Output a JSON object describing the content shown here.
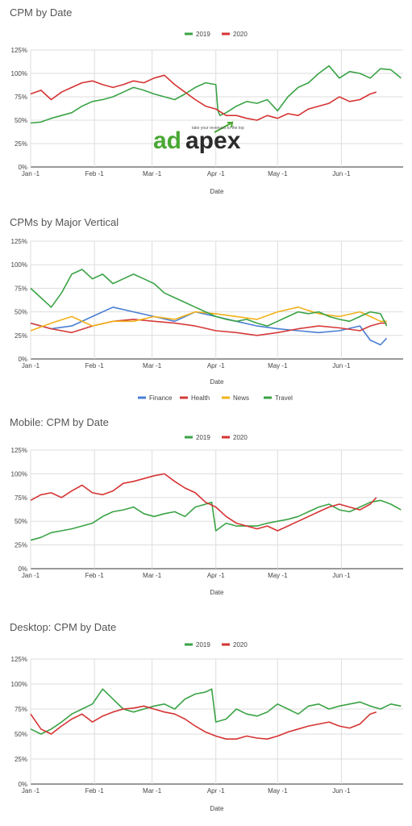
{
  "chart_data": [
    {
      "type": "line",
      "title": "CPM by Date",
      "xlabel": "Date",
      "ylabel": "",
      "x_ticks": [
        "Jan -1",
        "Feb -1",
        "Mar -1",
        "Apr -1",
        "May -1",
        "Jun -1"
      ],
      "y_ticks": [
        "0%",
        "25%",
        "50%",
        "75%",
        "100%",
        "125%"
      ],
      "ylim": [
        0,
        125
      ],
      "x_unit": "day of year (Jan 1 = 0)",
      "legend": "top",
      "grid": true,
      "series": [
        {
          "name": "2019",
          "color": "#3aa345",
          "x": [
            0,
            5,
            10,
            15,
            20,
            25,
            30,
            35,
            40,
            45,
            50,
            55,
            60,
            65,
            70,
            75,
            80,
            85,
            90,
            91,
            92,
            95,
            100,
            105,
            110,
            115,
            120,
            125,
            130,
            135,
            140,
            145,
            150,
            155,
            160,
            165,
            170,
            175,
            180
          ],
          "values": [
            47,
            48,
            52,
            55,
            58,
            65,
            70,
            72,
            75,
            80,
            85,
            82,
            78,
            75,
            72,
            78,
            85,
            90,
            88,
            60,
            55,
            58,
            65,
            70,
            68,
            72,
            60,
            75,
            85,
            90,
            100,
            108,
            95,
            102,
            100,
            95,
            105,
            104,
            95
          ]
        },
        {
          "name": "2020",
          "color": "#d63333",
          "x": [
            0,
            5,
            10,
            15,
            20,
            25,
            30,
            35,
            40,
            45,
            50,
            55,
            60,
            65,
            70,
            75,
            80,
            85,
            90,
            95,
            100,
            105,
            110,
            115,
            120,
            125,
            130,
            135,
            140,
            145,
            150,
            155,
            160,
            165,
            168
          ],
          "values": [
            78,
            82,
            72,
            80,
            85,
            90,
            92,
            88,
            85,
            88,
            92,
            90,
            95,
            98,
            88,
            80,
            72,
            65,
            62,
            55,
            55,
            52,
            50,
            55,
            52,
            57,
            55,
            62,
            65,
            68,
            75,
            70,
            72,
            78,
            80
          ]
        }
      ]
    },
    {
      "type": "line",
      "title": "CPMs by Major Vertical",
      "xlabel": "Date",
      "ylabel": "",
      "x_ticks": [
        "Jan -1",
        "Feb -1",
        "Mar -1",
        "Apr -1",
        "May -1",
        "Jun -1"
      ],
      "y_ticks": [
        "0%",
        "25%",
        "50%",
        "75%",
        "100%",
        "125%"
      ],
      "ylim": [
        0,
        125
      ],
      "x_unit": "day of year (Jan 1 = 0)",
      "legend": "bottom",
      "grid": true,
      "series": [
        {
          "name": "Finance",
          "color": "#4a7fd4",
          "x": [
            0,
            10,
            20,
            30,
            40,
            50,
            60,
            70,
            80,
            90,
            100,
            110,
            120,
            130,
            140,
            150,
            160,
            165,
            170,
            173
          ],
          "values": [
            38,
            32,
            35,
            45,
            55,
            50,
            45,
            40,
            50,
            45,
            40,
            35,
            32,
            30,
            28,
            30,
            35,
            20,
            15,
            22
          ]
        },
        {
          "name": "Health",
          "color": "#d63b3b",
          "x": [
            0,
            10,
            20,
            30,
            40,
            50,
            60,
            70,
            80,
            90,
            100,
            110,
            120,
            130,
            140,
            150,
            160,
            165,
            170,
            173
          ],
          "values": [
            38,
            32,
            28,
            35,
            40,
            42,
            40,
            38,
            35,
            30,
            28,
            25,
            28,
            32,
            35,
            33,
            30,
            35,
            38,
            38
          ]
        },
        {
          "name": "News",
          "color": "#f2b11a",
          "x": [
            0,
            10,
            20,
            30,
            40,
            50,
            60,
            70,
            80,
            90,
            100,
            110,
            120,
            130,
            140,
            150,
            160,
            165,
            170,
            173
          ],
          "values": [
            30,
            38,
            45,
            35,
            40,
            40,
            45,
            42,
            50,
            48,
            45,
            42,
            50,
            55,
            48,
            45,
            50,
            45,
            40,
            40
          ]
        },
        {
          "name": "Travel",
          "color": "#3aa345",
          "x": [
            0,
            5,
            10,
            15,
            20,
            25,
            30,
            35,
            40,
            45,
            50,
            55,
            60,
            65,
            70,
            75,
            80,
            85,
            90,
            95,
            100,
            105,
            110,
            115,
            120,
            125,
            130,
            135,
            140,
            145,
            150,
            155,
            160,
            165,
            170,
            173
          ],
          "values": [
            75,
            65,
            55,
            70,
            90,
            95,
            85,
            90,
            80,
            85,
            90,
            85,
            80,
            70,
            65,
            60,
            55,
            50,
            45,
            42,
            40,
            42,
            38,
            35,
            40,
            45,
            50,
            48,
            50,
            45,
            42,
            40,
            45,
            50,
            48,
            35
          ]
        }
      ]
    },
    {
      "type": "line",
      "title": "Mobile: CPM by Date",
      "xlabel": "Date",
      "ylabel": "",
      "x_ticks": [
        "Jan -1",
        "Feb -1",
        "Mar -1",
        "Apr -1",
        "May -1",
        "Jun -1"
      ],
      "y_ticks": [
        "0%",
        "25%",
        "50%",
        "75%",
        "100%",
        "125%"
      ],
      "ylim": [
        0,
        125
      ],
      "x_unit": "day of year (Jan 1 = 0)",
      "legend": "top",
      "grid": true,
      "series": [
        {
          "name": "2019",
          "color": "#3aa345",
          "x": [
            0,
            5,
            10,
            15,
            20,
            25,
            30,
            35,
            40,
            45,
            50,
            55,
            60,
            65,
            70,
            75,
            80,
            85,
            88,
            90,
            95,
            100,
            105,
            110,
            115,
            120,
            125,
            130,
            135,
            140,
            145,
            150,
            155,
            160,
            165,
            170,
            175,
            180
          ],
          "values": [
            30,
            33,
            38,
            40,
            42,
            45,
            48,
            55,
            60,
            62,
            65,
            58,
            55,
            58,
            60,
            55,
            65,
            68,
            70,
            40,
            48,
            45,
            45,
            45,
            48,
            50,
            52,
            55,
            60,
            65,
            68,
            62,
            60,
            65,
            70,
            72,
            68,
            62
          ]
        },
        {
          "name": "2020",
          "color": "#d63333",
          "x": [
            0,
            5,
            10,
            15,
            20,
            25,
            30,
            35,
            40,
            45,
            50,
            55,
            60,
            65,
            70,
            75,
            80,
            85,
            90,
            95,
            100,
            105,
            110,
            115,
            120,
            125,
            130,
            135,
            140,
            145,
            150,
            155,
            160,
            165,
            168
          ],
          "values": [
            72,
            78,
            80,
            75,
            82,
            88,
            80,
            78,
            82,
            90,
            92,
            95,
            98,
            100,
            92,
            85,
            80,
            70,
            65,
            55,
            48,
            45,
            42,
            45,
            40,
            45,
            50,
            55,
            60,
            65,
            68,
            65,
            62,
            68,
            75
          ]
        }
      ]
    },
    {
      "type": "line",
      "title": "Desktop: CPM by Date",
      "xlabel": "Date",
      "ylabel": "",
      "x_ticks": [
        "Jan -1",
        "Feb -1",
        "Mar -1",
        "Apr -1",
        "May -1",
        "Jun -1"
      ],
      "y_ticks": [
        "0%",
        "25%",
        "50%",
        "75%",
        "100%",
        "125%"
      ],
      "ylim": [
        0,
        125
      ],
      "x_unit": "day of year (Jan 1 = 0)",
      "legend": "top",
      "grid": true,
      "series": [
        {
          "name": "2019",
          "color": "#3aa345",
          "x": [
            0,
            5,
            10,
            15,
            20,
            25,
            30,
            35,
            40,
            45,
            50,
            55,
            60,
            65,
            70,
            75,
            80,
            85,
            88,
            90,
            95,
            100,
            105,
            110,
            115,
            120,
            125,
            130,
            135,
            140,
            145,
            150,
            155,
            160,
            165,
            170,
            175,
            180
          ],
          "values": [
            55,
            50,
            55,
            62,
            70,
            75,
            80,
            95,
            85,
            75,
            72,
            75,
            78,
            80,
            75,
            85,
            90,
            92,
            95,
            62,
            65,
            75,
            70,
            68,
            72,
            80,
            75,
            70,
            78,
            80,
            75,
            78,
            80,
            82,
            78,
            75,
            80,
            78
          ]
        },
        {
          "name": "2020",
          "color": "#d63333",
          "x": [
            0,
            5,
            10,
            15,
            20,
            25,
            30,
            35,
            40,
            45,
            50,
            55,
            60,
            65,
            70,
            75,
            80,
            85,
            90,
            95,
            100,
            105,
            110,
            115,
            120,
            125,
            130,
            135,
            140,
            145,
            150,
            155,
            160,
            165,
            168
          ],
          "values": [
            70,
            55,
            50,
            58,
            65,
            70,
            62,
            68,
            72,
            75,
            76,
            78,
            75,
            72,
            70,
            65,
            58,
            52,
            48,
            45,
            45,
            48,
            46,
            45,
            48,
            52,
            55,
            58,
            60,
            62,
            58,
            56,
            60,
            70,
            72
          ]
        }
      ]
    }
  ],
  "watermark": {
    "brand": "adapex",
    "tagline": "take your revenues to the top",
    "colors": {
      "brand_green": "#49a833",
      "brand_dark": "#2b2b2b",
      "arrow": "#49a833"
    }
  }
}
